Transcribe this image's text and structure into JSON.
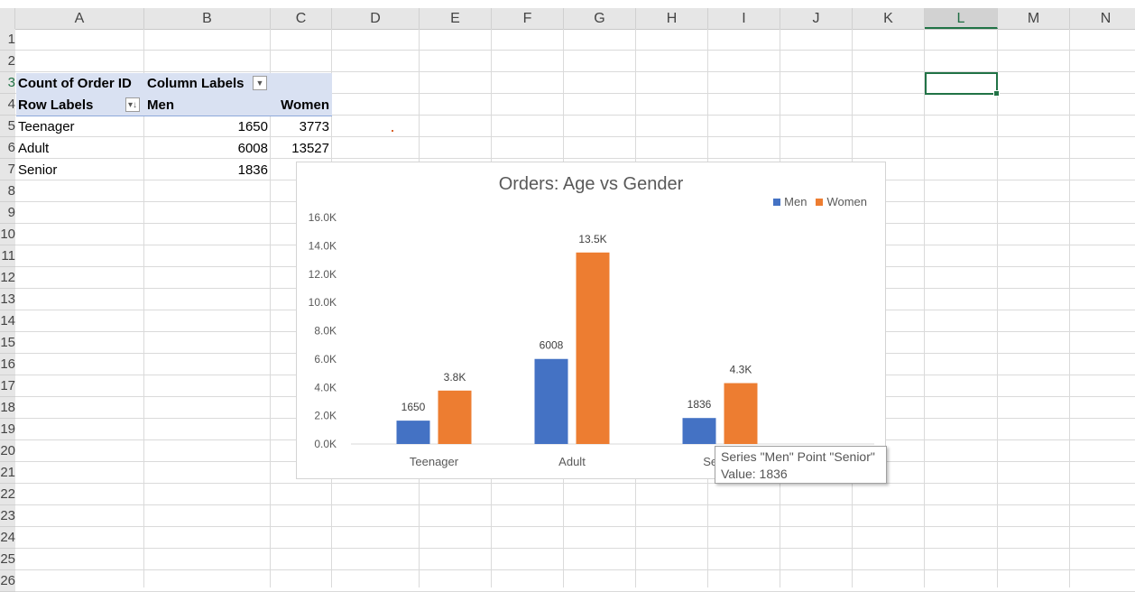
{
  "sheet": {
    "columns": [
      "A",
      "B",
      "C",
      "D",
      "E",
      "F",
      "G",
      "H",
      "I",
      "J",
      "K",
      "L",
      "M",
      "N"
    ],
    "selected_column": "L",
    "rows": [
      "1",
      "2",
      "3",
      "4",
      "5",
      "6",
      "7",
      "8",
      "9",
      "10",
      "11",
      "12",
      "13",
      "14",
      "15",
      "16",
      "17",
      "18",
      "19",
      "20",
      "21",
      "22",
      "23",
      "24",
      "25",
      "26"
    ],
    "selected_row": "3"
  },
  "pivot": {
    "value_header": "Count of Order ID",
    "column_labels_header": "Column Labels",
    "row_labels_header": "Row Labels",
    "columns": [
      "Men",
      "Women"
    ],
    "rows": [
      {
        "label": "Teenager",
        "men": "1650",
        "women": "3773"
      },
      {
        "label": "Adult",
        "men": "6008",
        "women": "13527"
      },
      {
        "label": "Senior",
        "men": "1836",
        "women": ""
      }
    ]
  },
  "chart_data": {
    "type": "bar",
    "title": "Orders: Age vs Gender",
    "categories": [
      "Teenager",
      "Adult",
      "Senior"
    ],
    "series": [
      {
        "name": "Men",
        "values": [
          1650,
          6008,
          1836
        ],
        "labels": [
          "1650",
          "6008",
          "1836"
        ],
        "color": "#4472c4"
      },
      {
        "name": "Women",
        "values": [
          3773,
          13527,
          4300
        ],
        "labels": [
          "3.8K",
          "13.5K",
          "4.3K"
        ],
        "color": "#ed7d31"
      }
    ],
    "y_ticks": [
      "0.0K",
      "2.0K",
      "4.0K",
      "6.0K",
      "8.0K",
      "10.0K",
      "12.0K",
      "14.0K",
      "16.0K"
    ],
    "ylim": [
      0,
      16000
    ],
    "legend_position": "top-right",
    "grid": false
  },
  "tooltip": {
    "line1": "Series \"Men\" Point \"Senior\"",
    "line2": "Value: 1836"
  },
  "icons": {
    "filter": "dropdown-arrow-icon",
    "sort": "sort-filter-icon"
  }
}
